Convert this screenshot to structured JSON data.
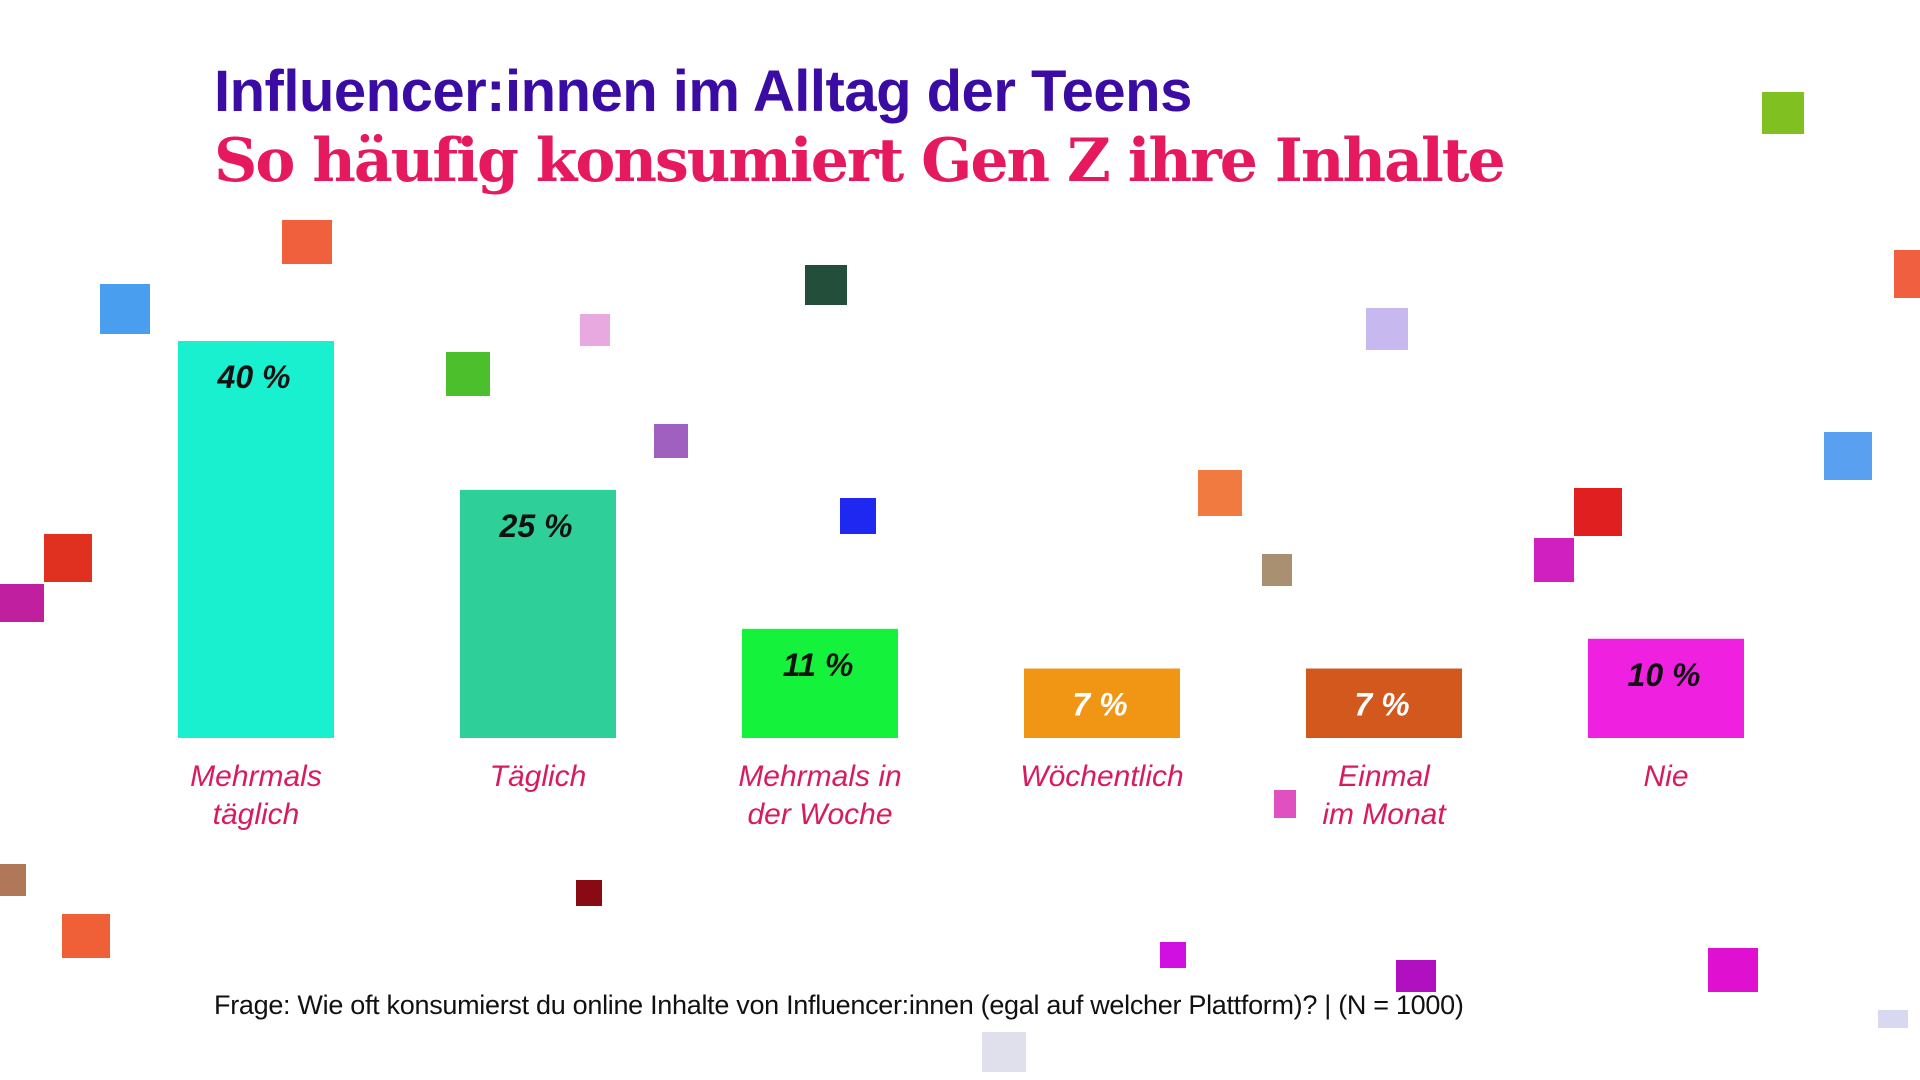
{
  "title": "Influencer:innen im Alltag der Teens",
  "subtitle": "So häufig konsumiert Gen Z ihre Inhalte",
  "footnote": "Frage: Wie oft konsumierst du online Inhalte von Influencer:innen (egal auf welcher Plattform)? | (N = 1000)",
  "colors": {
    "title": "#3a0ca3",
    "subtitle": "#e6195f",
    "category_label": "#d81b60"
  },
  "chart_data": {
    "type": "bar",
    "categories": [
      [
        "Mehrmals",
        "täglich"
      ],
      [
        "Täglich"
      ],
      [
        "Mehrmals in",
        "der Woche"
      ],
      [
        "Wöchentlich"
      ],
      [
        "Einmal",
        "im Monat"
      ],
      [
        "Nie"
      ]
    ],
    "values": [
      40,
      25,
      11,
      7,
      7,
      10
    ],
    "value_labels": [
      "40 %",
      "25 %",
      "11 %",
      "7 %",
      "7 %",
      "10 %"
    ],
    "unit": "%",
    "ylim": [
      0,
      40
    ],
    "bar_colors": [
      "#19f0d0",
      "#2fcf9a",
      "#14f23c",
      "#f09614",
      "#d2581e",
      "#f020e0"
    ],
    "value_label_colors": [
      "#111111",
      "#111111",
      "#111111",
      "#ffffff",
      "#ffffff",
      "#111111"
    ],
    "grid": false,
    "legend": "none"
  }
}
